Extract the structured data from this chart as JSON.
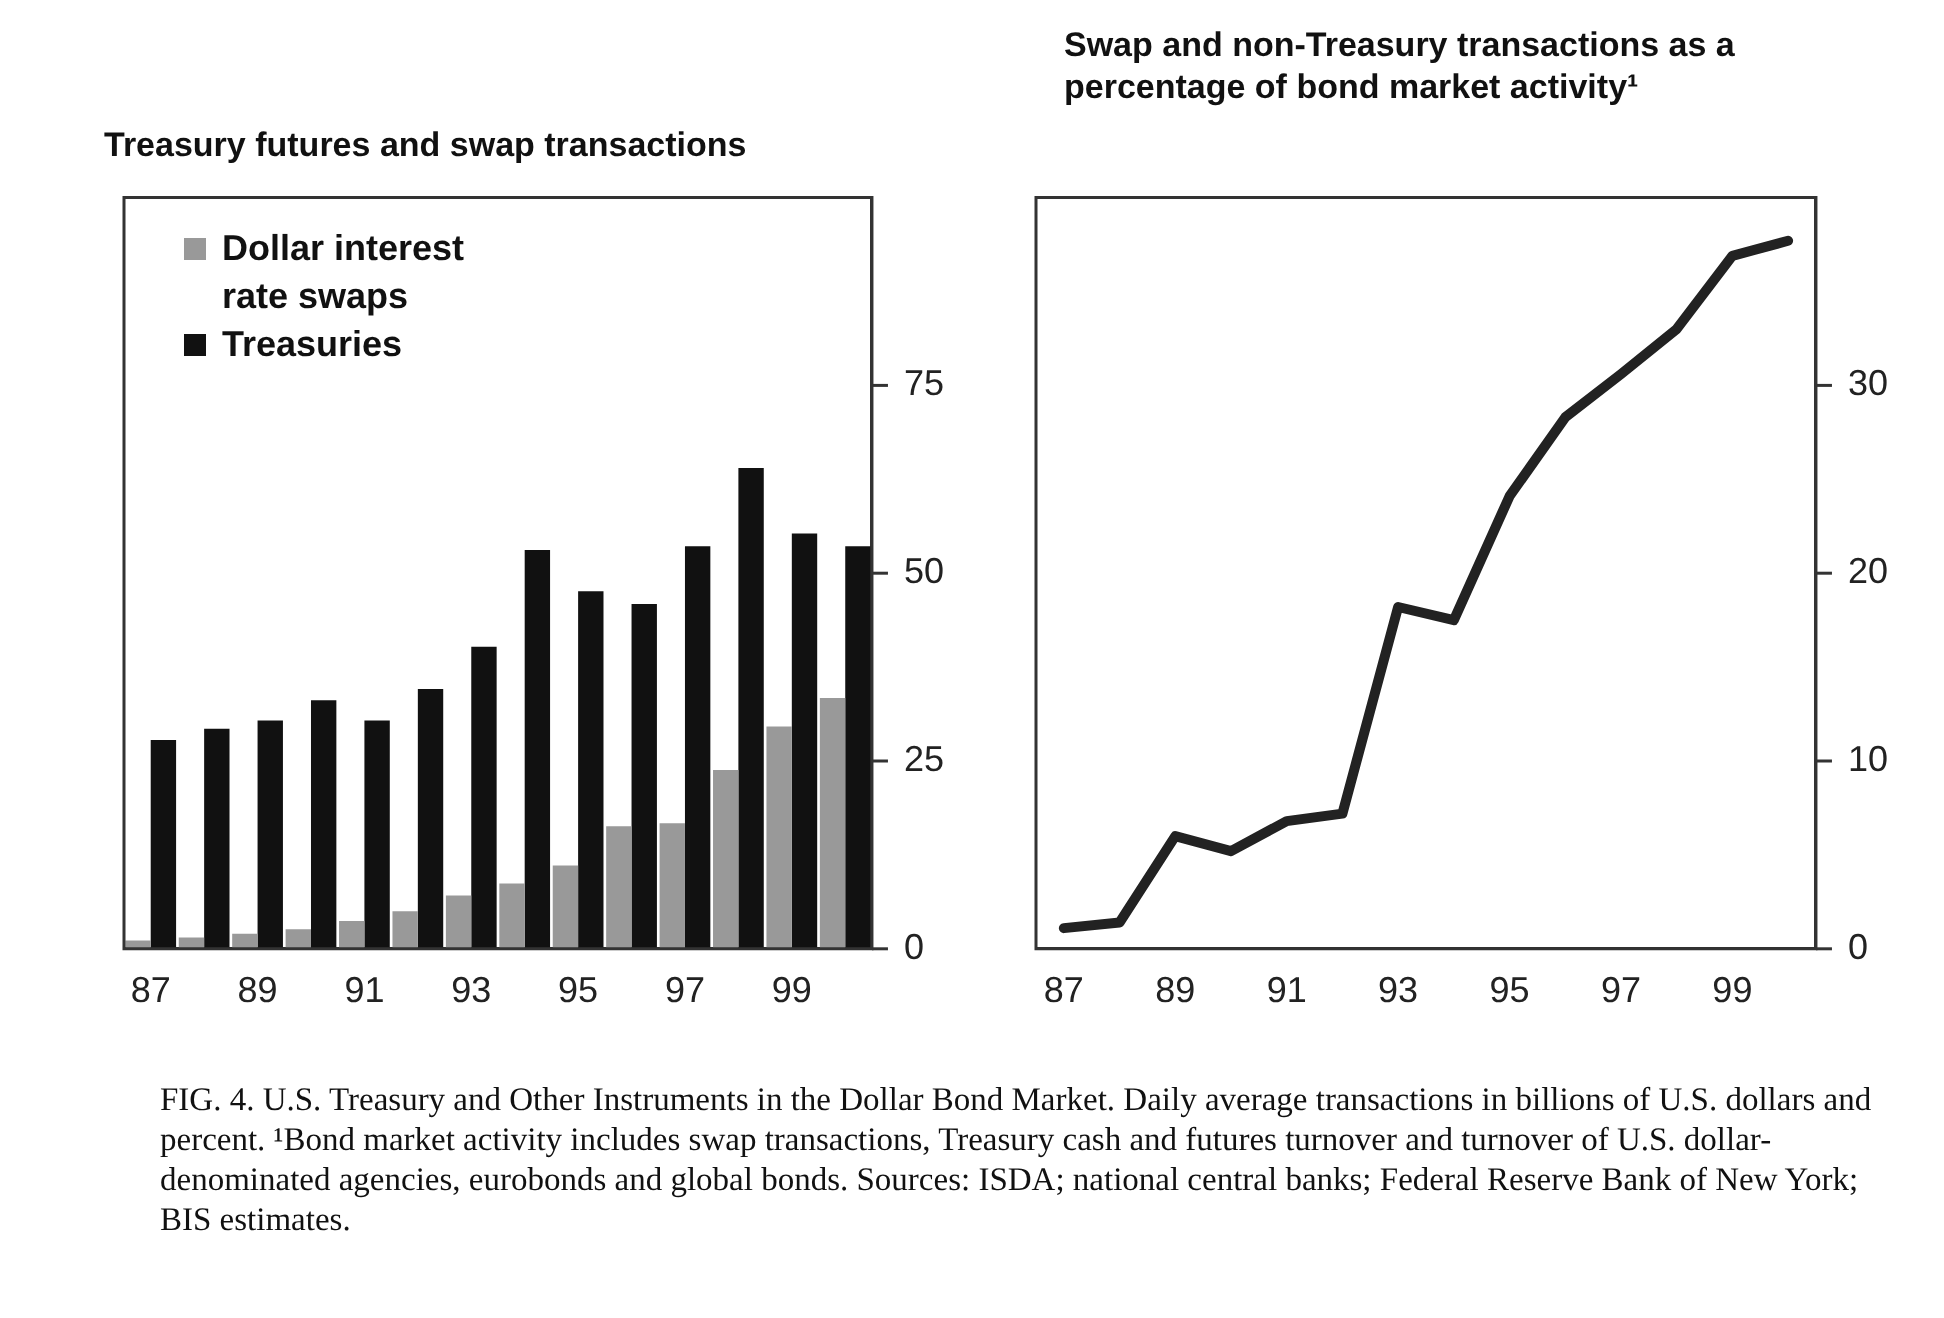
{
  "chart_data": [
    {
      "type": "bar",
      "title": "Treasury futures and swap transactions",
      "categories": [
        "87",
        null,
        "89",
        null,
        "91",
        null,
        "93",
        null,
        "95",
        null,
        "97",
        null,
        "99",
        null
      ],
      "series": [
        {
          "name": "Dollar interest rate swaps",
          "color": "#999999",
          "values": [
            1.1,
            1.5,
            2.0,
            2.6,
            3.7,
            5.0,
            7.1,
            8.7,
            11.1,
            16.3,
            16.7,
            23.8,
            29.6,
            33.4
          ]
        },
        {
          "name": "Treasuries",
          "color": "#111111",
          "values": [
            27.8,
            29.3,
            30.4,
            33.1,
            30.4,
            34.6,
            40.2,
            53.1,
            47.6,
            45.9,
            53.6,
            64,
            55.3,
            53.6
          ]
        }
      ],
      "ylim": [
        0,
        100
      ],
      "yticks": [
        0,
        25,
        50,
        75
      ],
      "grid": false,
      "legend": "top left",
      "annotations": [
        "FIG. 4. U.S. Treasury and Other Instruments in the Dollar Bond Market. Daily average transactions in billions of U.S. dollars and percent. ¹Bond market activity includes swap transactions, Treasury cash and futures turnover and turnover of U.S. dollar-denominated agencies, eurobonds and global bonds. Sources: ISDA; national central banks; Federal Reserve Bank of New York; BIS estimates."
      ]
    },
    {
      "type": "line",
      "title": "Swap and non-Treasury transactions as a percentage of bond market activity¹",
      "categories": [
        "87",
        null,
        "89",
        null,
        "91",
        null,
        "93",
        null,
        "95",
        null,
        "97",
        null,
        "99",
        null
      ],
      "series": [
        {
          "color": "#222222",
          "values": [
            1.1,
            1.4,
            6.0,
            5.2,
            6.8,
            7.2,
            18.2,
            17.5,
            24.1,
            28.3,
            30.6,
            33.0,
            36.9,
            37.7
          ]
        }
      ],
      "ylim": [
        0,
        40
      ],
      "yticks": [
        0,
        10,
        20,
        30
      ],
      "grid": false,
      "legend": false,
      "marker": "none",
      "line_style": "solid"
    }
  ]
}
